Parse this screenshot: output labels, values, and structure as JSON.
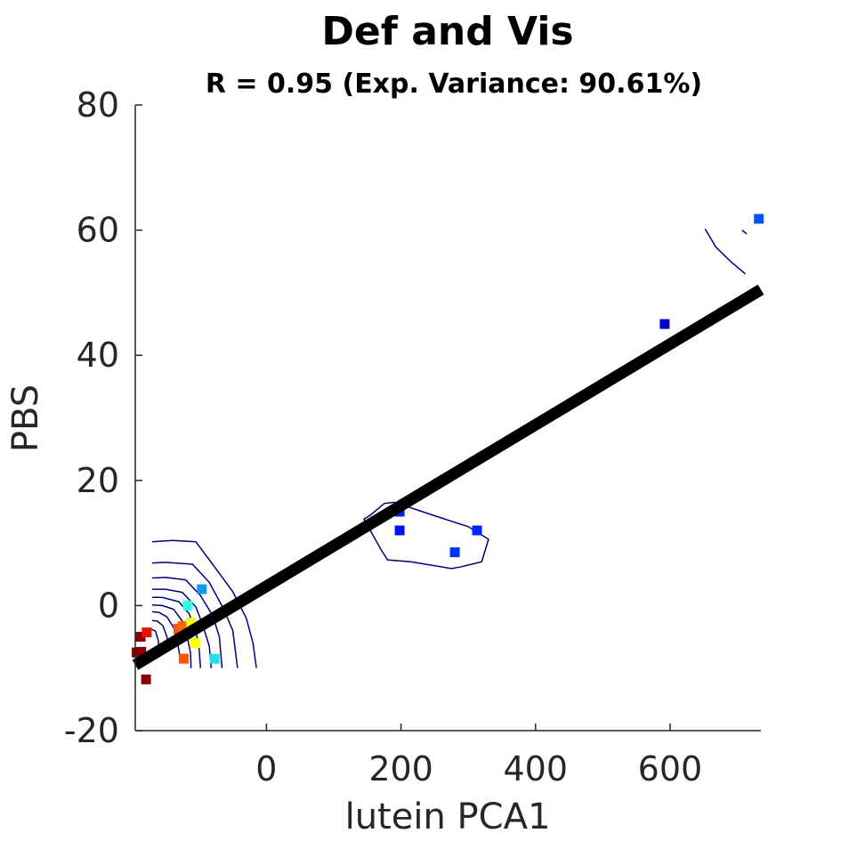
{
  "chart_data": {
    "type": "scatter",
    "title": "Def and Vis",
    "subtitle": "R = 0.95 (Exp. Variance: 90.61%)",
    "xlabel": "lutein PCA1",
    "ylabel": "PBS",
    "xlim": [
      -195,
      735
    ],
    "ylim": [
      -20,
      80
    ],
    "xticks": [
      0,
      200,
      400,
      600
    ],
    "xtick_labels": [
      "0",
      "200",
      "400",
      "600"
    ],
    "yticks": [
      -20,
      0,
      20,
      40,
      60,
      80
    ],
    "ytick_labels": [
      "-20",
      "0",
      "20",
      "40",
      "60",
      "80"
    ],
    "grid": false,
    "points": [
      {
        "x": -193,
        "y": -7.5,
        "color": "#800000"
      },
      {
        "x": -186,
        "y": -7.4,
        "color": "#8b0000"
      },
      {
        "x": -187,
        "y": -5.0,
        "color": "#8b0000"
      },
      {
        "x": -179,
        "y": -11.8,
        "color": "#8b0000"
      },
      {
        "x": -178,
        "y": -4.3,
        "color": "#ee1100"
      },
      {
        "x": -131,
        "y": -3.7,
        "color": "#ff5500"
      },
      {
        "x": -125,
        "y": -3.3,
        "color": "#ff6600"
      },
      {
        "x": -123,
        "y": -8.5,
        "color": "#ff5500"
      },
      {
        "x": -117,
        "y": 0.0,
        "color": "#33ffdd"
      },
      {
        "x": -112,
        "y": -2.7,
        "color": "#eeff11"
      },
      {
        "x": -106,
        "y": -6.0,
        "color": "#ffff00"
      },
      {
        "x": -96,
        "y": 2.6,
        "color": "#1199ee"
      },
      {
        "x": -77,
        "y": -8.5,
        "color": "#22ddee"
      },
      {
        "x": 198,
        "y": 15.0,
        "color": "#0022ee"
      },
      {
        "x": 198,
        "y": 12.0,
        "color": "#0011ee"
      },
      {
        "x": 280,
        "y": 8.5,
        "color": "#0033ff"
      },
      {
        "x": 313,
        "y": 12.0,
        "color": "#0022ff"
      },
      {
        "x": 592,
        "y": 45.0,
        "color": "#0000cc"
      },
      {
        "x": 732,
        "y": 61.8,
        "color": "#0055ff"
      }
    ],
    "fit_line": {
      "x": [
        -195,
        735
      ],
      "y": [
        -9.5,
        50.5
      ],
      "color": "#000000"
    },
    "contours": [
      [
        [
          -170,
          10.2
        ],
        [
          -140,
          10.4
        ],
        [
          -105,
          10.2
        ],
        [
          -80,
          6.6
        ],
        [
          -50,
          2.2
        ],
        [
          -30,
          -2
        ],
        [
          -20,
          -6
        ],
        [
          -15,
          -10
        ]
      ],
      [
        [
          -170,
          6.8
        ],
        [
          -150,
          6.9
        ],
        [
          -110,
          6.6
        ],
        [
          -85,
          3.7
        ],
        [
          -65,
          -0.3
        ],
        [
          -50,
          -4
        ],
        [
          -43,
          -10
        ]
      ],
      [
        [
          -170,
          4.4
        ],
        [
          -150,
          4.5
        ],
        [
          -120,
          4.1
        ],
        [
          -98,
          1.6
        ],
        [
          -80,
          -1.6
        ],
        [
          -70,
          -5
        ],
        [
          -66,
          -10
        ]
      ],
      [
        [
          -170,
          2.6
        ],
        [
          -150,
          2.6
        ],
        [
          -125,
          2.1
        ],
        [
          -105,
          -0.2
        ],
        [
          -95,
          -3
        ],
        [
          -85,
          -6.5
        ],
        [
          -82,
          -10
        ]
      ],
      [
        [
          -170,
          1.3
        ],
        [
          -155,
          1.3
        ],
        [
          -130,
          0.6
        ],
        [
          -115,
          -1.3
        ],
        [
          -105,
          -4
        ],
        [
          -100,
          -7
        ],
        [
          -98,
          -10
        ]
      ],
      [
        [
          -170,
          0.1
        ],
        [
          -155,
          0.0
        ],
        [
          -138,
          -0.6
        ],
        [
          -125,
          -2.5
        ],
        [
          -118,
          -5
        ],
        [
          -113,
          -7.5
        ],
        [
          -112,
          -10
        ]
      ],
      [
        [
          -170,
          -1.0
        ],
        [
          -160,
          -1.1
        ],
        [
          -148,
          -1.8
        ],
        [
          -138,
          -3.5
        ],
        [
          -132,
          -6
        ],
        [
          -128,
          -8.5
        ]
      ],
      [
        [
          -170,
          -2.4
        ],
        [
          -162,
          -2.5
        ],
        [
          -154,
          -3.2
        ],
        [
          -148,
          -5
        ],
        [
          -144,
          -7.2
        ]
      ],
      [
        [
          -171,
          -3.8
        ],
        [
          -165,
          -4.1
        ],
        [
          -161,
          -5.5
        ],
        [
          -159,
          -7.2
        ]
      ],
      [
        [
          155,
          14.5
        ],
        [
          175,
          16.3
        ],
        [
          190,
          16.5
        ],
        [
          260,
          14.0
        ],
        [
          300,
          12.6
        ],
        [
          330,
          10.6
        ],
        [
          320,
          7.0
        ],
        [
          290,
          6.2
        ],
        [
          275,
          5.9
        ],
        [
          215,
          7.0
        ],
        [
          180,
          7.3
        ],
        [
          170,
          9.0
        ],
        [
          145,
          13.8
        ],
        [
          155,
          14.5
        ]
      ],
      [
        [
          652,
          60.2
        ],
        [
          668,
          57.3
        ],
        [
          690,
          55.0
        ],
        [
          712,
          53.0
        ]
      ],
      [
        [
          707,
          60.0
        ],
        [
          714,
          59.4
        ]
      ]
    ],
    "contour_color": "#000080"
  }
}
